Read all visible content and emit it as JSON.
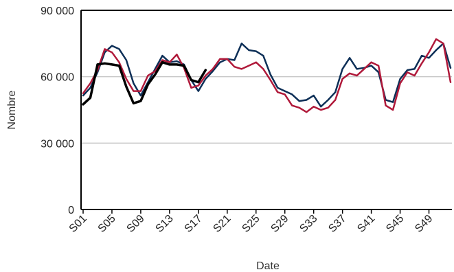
{
  "chart_data": {
    "type": "line",
    "xlabel": "Date",
    "ylabel": "Nombre",
    "ylim": [
      0,
      90000
    ],
    "y_ticks": [
      0,
      30000,
      60000,
      90000
    ],
    "y_tick_labels": [
      "0",
      "30 000",
      "60 000",
      "90 000"
    ],
    "x_tick_labels": [
      "S01",
      "S05",
      "S09",
      "S13",
      "S17",
      "S21",
      "S25",
      "S29",
      "S33",
      "S37",
      "S41",
      "S45",
      "S49"
    ],
    "x_tick_weeks": [
      1,
      5,
      9,
      13,
      17,
      21,
      25,
      29,
      33,
      37,
      41,
      45,
      49
    ],
    "x_range": [
      1,
      52
    ],
    "grid": "horizontal",
    "series": [
      {
        "color": "#0d2f57",
        "weeks": [
          1,
          2,
          3,
          4,
          5,
          6,
          7,
          8,
          9,
          10,
          11,
          12,
          13,
          14,
          15,
          16,
          17,
          18,
          19,
          20,
          21,
          22,
          23,
          24,
          25,
          26,
          27,
          28,
          29,
          30,
          31,
          32,
          33,
          34,
          35,
          36,
          37,
          38,
          39,
          40,
          41,
          42,
          43,
          44,
          45,
          46,
          47,
          48,
          49,
          50,
          51,
          52
        ],
        "values": [
          51500,
          55000,
          62000,
          71000,
          74000,
          72500,
          67500,
          57000,
          51500,
          57500,
          63500,
          69500,
          66500,
          67000,
          65500,
          58500,
          53500,
          59000,
          62500,
          66500,
          68000,
          67500,
          75000,
          72000,
          71500,
          69500,
          61000,
          55000,
          53500,
          52000,
          49000,
          49500,
          51500,
          46500,
          49500,
          53000,
          63500,
          68500,
          63500,
          64000,
          65000,
          62000,
          49500,
          48500,
          59000,
          63000,
          63500,
          69500,
          68500,
          72000,
          75000,
          64000
        ]
      },
      {
        "color": "#b0193a",
        "weeks": [
          1,
          2,
          3,
          4,
          5,
          6,
          7,
          8,
          9,
          10,
          11,
          12,
          13,
          14,
          15,
          16,
          17,
          18,
          19,
          20,
          21,
          22,
          23,
          24,
          25,
          26,
          27,
          28,
          29,
          30,
          31,
          32,
          33,
          34,
          35,
          36,
          37,
          38,
          39,
          40,
          41,
          42,
          43,
          44,
          45,
          46,
          47,
          48,
          49,
          50,
          51,
          52
        ],
        "values": [
          52500,
          57000,
          63000,
          72500,
          71000,
          66500,
          59000,
          53500,
          53500,
          60500,
          62500,
          67500,
          66500,
          70000,
          64000,
          55000,
          56000,
          60500,
          63500,
          68000,
          68000,
          64500,
          63500,
          65000,
          66500,
          63500,
          58500,
          53000,
          52000,
          47000,
          46000,
          44000,
          46500,
          45000,
          46000,
          49500,
          59000,
          61500,
          60500,
          63500,
          66500,
          65000,
          47000,
          45000,
          57000,
          62000,
          60500,
          66000,
          71000,
          77000,
          75000,
          57500
        ]
      },
      {
        "color": "#000000",
        "weeks": [
          1,
          2,
          3,
          4,
          5,
          6,
          7,
          8,
          9,
          10,
          11,
          12,
          13,
          14,
          15,
          16,
          17,
          18
        ],
        "values": [
          47500,
          50500,
          65500,
          66000,
          65500,
          65000,
          55500,
          48000,
          49000,
          56500,
          61000,
          66500,
          65500,
          65500,
          65000,
          58500,
          57500,
          63000
        ]
      }
    ]
  }
}
